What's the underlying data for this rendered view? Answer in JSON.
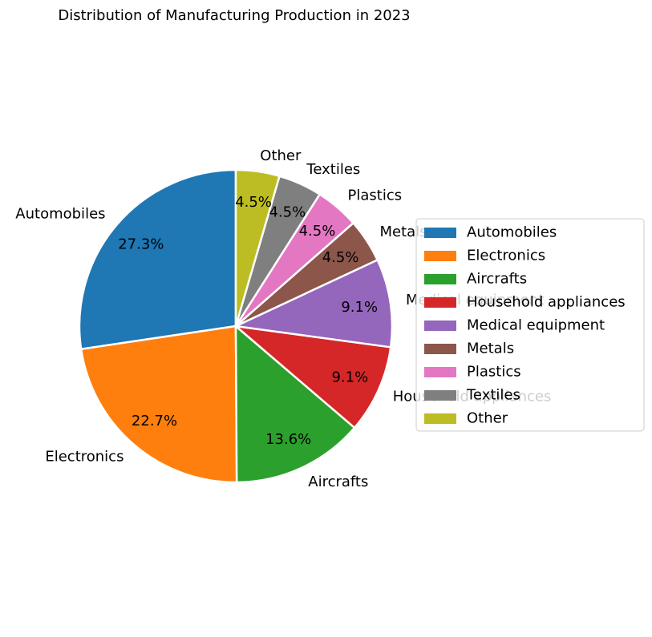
{
  "chart_data": {
    "type": "pie",
    "title": "Distribution of Manufacturing Production in 2023",
    "categories": [
      "Automobiles",
      "Electronics",
      "Aircrafts",
      "Household appliances",
      "Medical equipment",
      "Metals",
      "Plastics",
      "Textiles",
      "Other"
    ],
    "values": [
      27.3,
      22.7,
      13.6,
      9.1,
      9.1,
      4.5,
      4.5,
      4.5,
      4.5
    ],
    "pct_labels": [
      "27.3%",
      "22.7%",
      "13.6%",
      "9.1%",
      "9.1%",
      "4.5%",
      "4.5%",
      "4.5%",
      "4.5%"
    ],
    "colors": [
      "#1f77b4",
      "#ff7f0e",
      "#2ca02c",
      "#d62728",
      "#9467bd",
      "#8c564b",
      "#e377c2",
      "#7f7f7f",
      "#bcbd22"
    ],
    "start_angle_deg": 90,
    "direction": "counterclockwise",
    "legend_placement": "center-right"
  }
}
